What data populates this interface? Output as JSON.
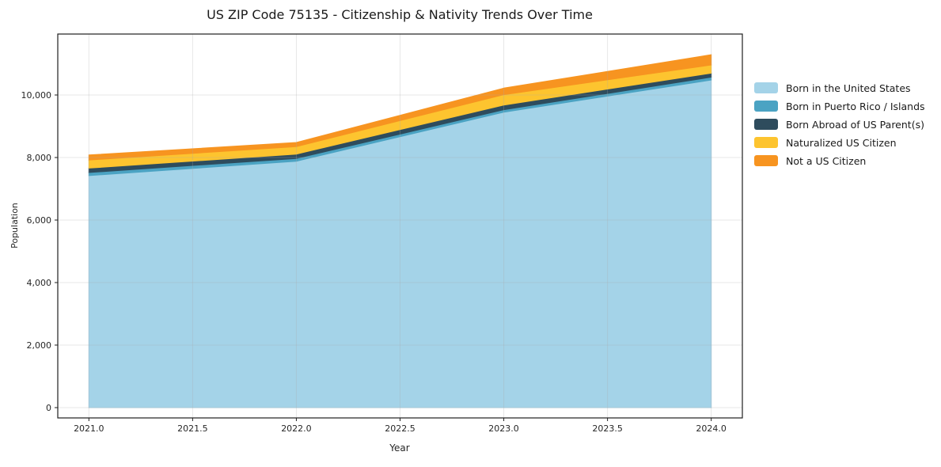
{
  "chart_data": {
    "type": "area",
    "stacked": true,
    "title": "US ZIP Code 75135 - Citizenship & Nativity Trends Over Time",
    "xlabel": "Year",
    "ylabel": "Population",
    "x": [
      2021,
      2022,
      2023,
      2024
    ],
    "series": [
      {
        "name": "Born in the United States",
        "color": "#a4d3e8",
        "values": [
          7420,
          7880,
          9450,
          10480
        ]
      },
      {
        "name": "Born in Puerto Rico / Islands",
        "color": "#4ba3c3",
        "values": [
          100,
          90,
          80,
          90
        ]
      },
      {
        "name": "Born Abroad of US Parent(s)",
        "color": "#2e4c5d",
        "values": [
          140,
          140,
          150,
          130
        ]
      },
      {
        "name": "Naturalized US Citizen",
        "color": "#fdc42f",
        "values": [
          260,
          240,
          330,
          260
        ]
      },
      {
        "name": "Not a US Citizen",
        "color": "#f79420",
        "values": [
          160,
          130,
          210,
          330
        ]
      }
    ],
    "xlim": [
      2020.85,
      2024.15
    ],
    "ylim": [
      -330,
      11950
    ],
    "xticks": [
      2021.0,
      2021.5,
      2022.0,
      2022.5,
      2023.0,
      2023.5,
      2024.0
    ],
    "xtick_labels": [
      "2021.0",
      "2021.5",
      "2022.0",
      "2022.5",
      "2023.0",
      "2023.5",
      "2024.0"
    ],
    "yticks": [
      0,
      2000,
      4000,
      6000,
      8000,
      10000
    ],
    "ytick_labels": [
      "0",
      "2,000",
      "4,000",
      "6,000",
      "8,000",
      "10,000"
    ],
    "grid": true,
    "legend_position": "right"
  }
}
